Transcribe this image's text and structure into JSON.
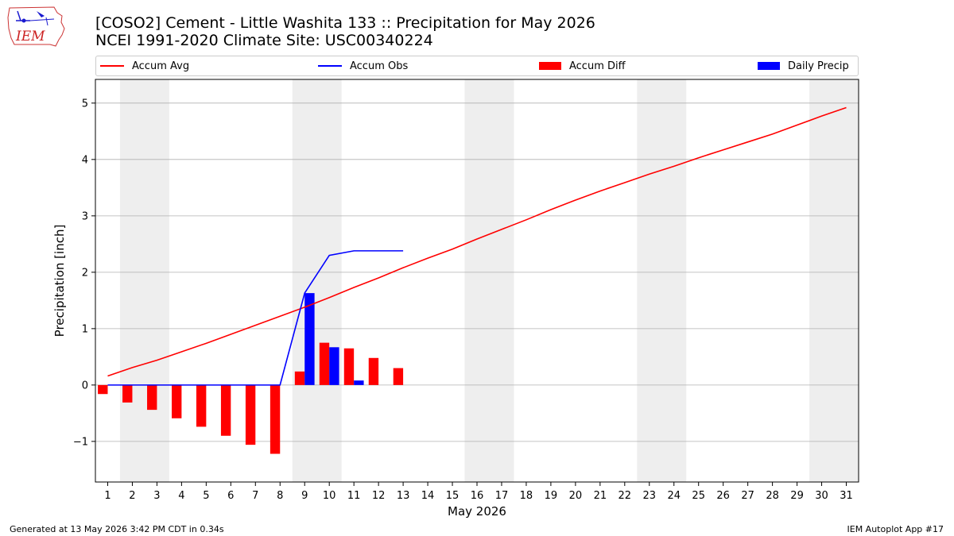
{
  "header": {
    "logo_text": "IEM",
    "title_line1": "[COSO2] Cement - Little Washita 133 :: Precipitation for May 2026",
    "title_line2": "NCEI 1991-2020 Climate Site: USC00340224"
  },
  "footer": {
    "left": "Generated at 13 May 2026 3:42 PM CDT in 0.34s",
    "right": "IEM Autoplot App #17"
  },
  "colors": {
    "avg": "#ff0000",
    "obs": "#0000ff",
    "diff": "#ff0000",
    "daily": "#0000ff",
    "weekend_shade": "#eeeeee",
    "grid": "#b0b0b0"
  },
  "chart_data": {
    "type": "bar",
    "xlabel": "May 2026",
    "ylabel": "Precipitation [inch]",
    "ylim": [
      -1.72,
      5.42
    ],
    "yticks": [
      -1,
      0,
      1,
      2,
      3,
      4,
      5
    ],
    "ytick_labels": [
      "−1",
      "0",
      "1",
      "2",
      "3",
      "4",
      "5"
    ],
    "xlim": [
      0.5,
      31.5
    ],
    "days": [
      1,
      2,
      3,
      4,
      5,
      6,
      7,
      8,
      9,
      10,
      11,
      12,
      13,
      14,
      15,
      16,
      17,
      18,
      19,
      20,
      21,
      22,
      23,
      24,
      25,
      26,
      27,
      28,
      29,
      30,
      31
    ],
    "weekend_spans": [
      [
        1.5,
        3.5
      ],
      [
        8.5,
        10.5
      ],
      [
        15.5,
        17.5
      ],
      [
        22.5,
        24.5
      ],
      [
        29.5,
        31.5
      ]
    ],
    "grid": "horizontal",
    "legend_position": "top",
    "series": [
      {
        "name": "Accum Avg",
        "kind": "line",
        "x": [
          1,
          2,
          3,
          4,
          5,
          6,
          7,
          8,
          9,
          10,
          11,
          12,
          13,
          14,
          15,
          16,
          17,
          18,
          19,
          20,
          21,
          22,
          23,
          24,
          25,
          26,
          27,
          28,
          29,
          30,
          31
        ],
        "values": [
          0.16,
          0.31,
          0.44,
          0.59,
          0.74,
          0.9,
          1.06,
          1.22,
          1.38,
          1.55,
          1.73,
          1.9,
          2.08,
          2.25,
          2.41,
          2.59,
          2.76,
          2.93,
          3.11,
          3.28,
          3.44,
          3.59,
          3.74,
          3.88,
          4.03,
          4.17,
          4.31,
          4.45,
          4.61,
          4.77,
          4.92
        ]
      },
      {
        "name": "Accum Obs",
        "kind": "line",
        "x": [
          1,
          2,
          3,
          4,
          5,
          6,
          7,
          8,
          9,
          10,
          11,
          12,
          13
        ],
        "values": [
          0,
          0,
          0,
          0,
          0,
          0,
          0,
          0,
          1.63,
          2.3,
          2.38,
          2.38,
          2.38
        ]
      },
      {
        "name": "Accum Diff",
        "kind": "bar",
        "x": [
          1,
          2,
          3,
          4,
          5,
          6,
          7,
          8,
          9,
          10,
          11,
          12,
          13
        ],
        "values": [
          -0.16,
          -0.31,
          -0.44,
          -0.59,
          -0.74,
          -0.9,
          -1.06,
          -1.22,
          0.24,
          0.75,
          0.65,
          0.48,
          0.3
        ]
      },
      {
        "name": "Daily Precip",
        "kind": "bar",
        "x": [
          1,
          2,
          3,
          4,
          5,
          6,
          7,
          8,
          9,
          10,
          11,
          12,
          13
        ],
        "values": [
          0,
          0,
          0,
          0,
          0,
          0,
          0,
          0,
          1.63,
          0.67,
          0.08,
          0,
          0
        ]
      }
    ]
  }
}
